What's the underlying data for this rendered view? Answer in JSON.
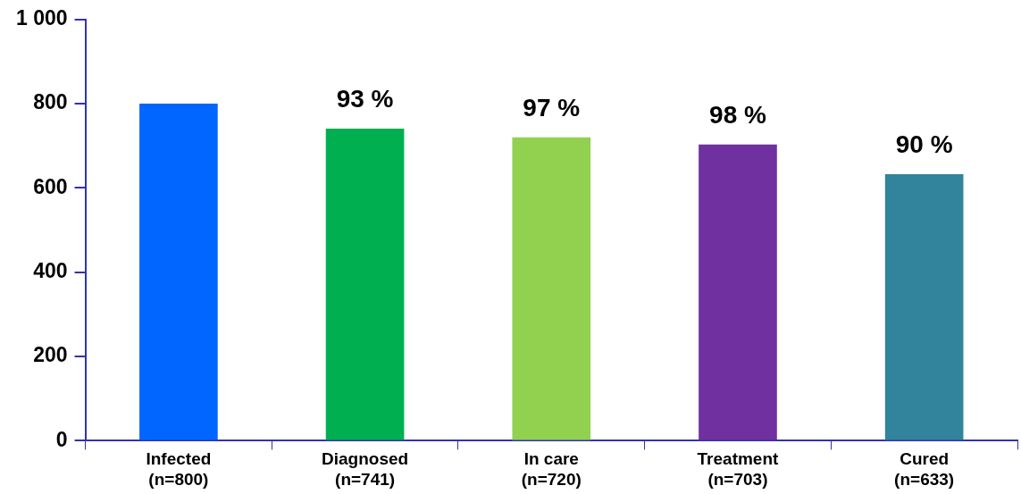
{
  "chart_data": {
    "type": "bar",
    "categories": [
      "Infected\n(n=800)",
      "Diagnosed\n(n=741)",
      "In care\n(n=720)",
      "Treatment\n(n=703)",
      "Cured\n(n=633)"
    ],
    "values": [
      800,
      741,
      720,
      703,
      633
    ],
    "colors": [
      "#0066ff",
      "#00b050",
      "#92d050",
      "#7030a0",
      "#31849b"
    ],
    "annotations": [
      {
        "text": "93 %",
        "x": "Diagnosed\n(n=741)",
        "y": 741
      },
      {
        "text": "97 %",
        "x": "In care\n(n=720)",
        "y": 720
      },
      {
        "text": "98 %",
        "x": "Treatment\n(n=703)",
        "y": 703
      },
      {
        "text": "90 %",
        "x": "Cured\n(n=633)",
        "y": 633
      }
    ],
    "ylim": [
      0,
      1000
    ],
    "yticks": [
      0,
      200,
      400,
      600,
      800,
      {
        "value": 1000,
        "label": "1 000"
      }
    ],
    "grid": false,
    "legend": false
  }
}
